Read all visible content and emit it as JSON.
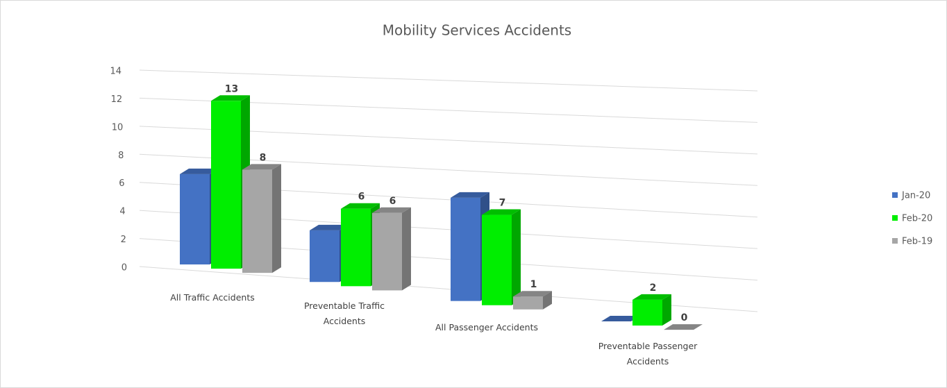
{
  "chart_data": {
    "type": "bar3d",
    "title": "Mobility Services Accidents",
    "categories": [
      "All Traffic Accidents",
      "Preventable Traffic Accidents",
      "All Passenger Accidents",
      "Preventable Passenger Accidents"
    ],
    "series": [
      {
        "name": "Jan-20",
        "color": "#4472c4",
        "values": [
          7,
          4,
          8,
          0
        ],
        "data_labels": false
      },
      {
        "name": "Feb-20",
        "color": "#00ee00",
        "values": [
          13,
          6,
          7,
          2
        ],
        "data_labels": true
      },
      {
        "name": "Feb-19",
        "color": "#a6a6a6",
        "values": [
          8,
          6,
          1,
          0
        ],
        "data_labels": true
      }
    ],
    "ylim": [
      0,
      14
    ],
    "yticks": [
      0,
      2,
      4,
      6,
      8,
      10,
      12,
      14
    ],
    "grid": true,
    "legend": "right"
  }
}
